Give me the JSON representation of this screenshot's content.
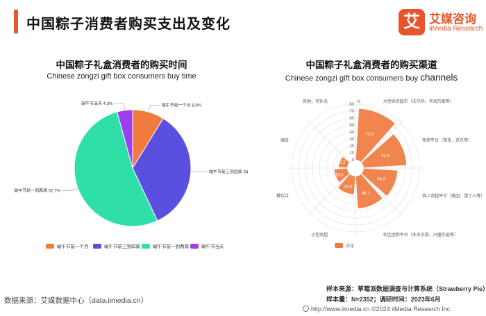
{
  "page": {
    "title": "中国粽子消费者购买支出及变化"
  },
  "brand": {
    "mark": "艾",
    "name_cn": "艾媒咨询",
    "name_en": "iiMedia Research"
  },
  "charts": {
    "left": {
      "title": "中国粽子礼盒消费者的购买时间",
      "subtitle": "Chinese zongzi gift box consumers buy time"
    },
    "right": {
      "title": "中国粽子礼盒消费者的购买渠道",
      "subtitle_small": "Chinese zongzi gift box consumers buy",
      "subtitle_big": "channels"
    }
  },
  "footer": {
    "source_left": "数据来源：艾媒数据中心（data.iimedia.cn）",
    "sample_source": "样本来源：草莓派数据调查与计算系统（Strawberry Pie）",
    "sample_size": "样本量：N=2352；调研时间：2023年6月",
    "website": "http://www.iimedia.cn   ©2024  iiMedia Research  Inc"
  },
  "chart_data": [
    {
      "type": "pie",
      "title": "中国粽子礼盒消费者的购买时间",
      "categories": [
        "端午节前一个月",
        "端午节前三到四周",
        "端午节前一到两周",
        "端午节当天"
      ],
      "values": [
        8.8,
        34.2,
        52.7,
        4.3
      ],
      "labels": [
        "端午节前一个月 8.8%",
        "端午节前三到四周 34",
        "端午节前一到两周 52.7%",
        "端午节当天 4.3%"
      ],
      "colors": [
        "#f07b3f",
        "#5b4fe0",
        "#2ee0a8",
        "#9b3ff0"
      ],
      "legend": "bottom"
    },
    {
      "type": "bar",
      "subtype": "polar",
      "title": "中国粽子礼盒消费者的购买渠道",
      "categories": [
        "大型综合超市（沃尔玛、华润万家等）",
        "电商平台（淘宝、京东等）",
        "线上商超平台（美团、饿了么等）",
        "社区团购平台（多多买菜、兴盛优选等）",
        "小型商超",
        "餐饮店",
        "酒店",
        "其他，可补充"
      ],
      "values": [
        73.6,
        61.4,
        48.3,
        46.1,
        25.8,
        18.5,
        12.3,
        0.1
      ],
      "series": [
        {
          "name": "占比",
          "values": [
            73.6,
            61.4,
            48.3,
            46.1,
            25.8,
            18.5,
            12.3,
            0.1
          ]
        }
      ],
      "axis_unit": "%",
      "radial_ticks": [
        0,
        10,
        20,
        30,
        40,
        50,
        60,
        70,
        80
      ],
      "rlim": [
        0,
        80
      ],
      "color": "#f07b3f",
      "legend": "bottom"
    }
  ]
}
